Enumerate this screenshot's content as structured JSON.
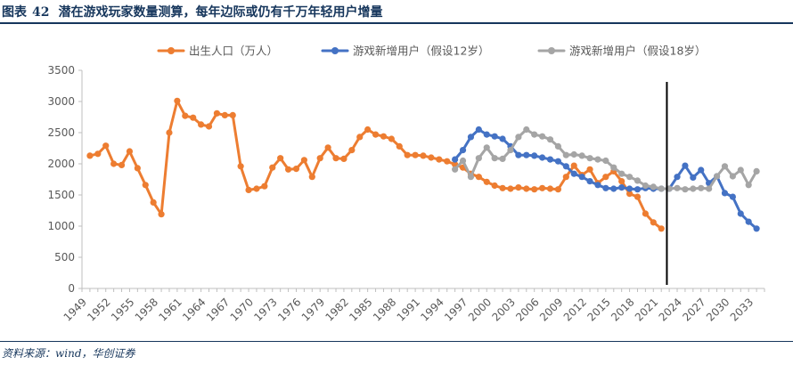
{
  "header": {
    "figure_label": "图表",
    "figure_number": "42",
    "title": "潜在游戏玩家数量测算，每年边际或仍有千万年轻用户增量"
  },
  "footer": {
    "source": "资料来源：wind，华创证券"
  },
  "chart_data": {
    "type": "line",
    "title": "潜在游戏玩家数量测算，每年边际或仍有千万年轻用户增量",
    "xlabel": "",
    "ylabel": "",
    "ylim": [
      0,
      3500
    ],
    "yticks": [
      0,
      500,
      1000,
      1500,
      2000,
      2500,
      3000,
      3500
    ],
    "xlim": [
      1949,
      2035
    ],
    "xticks": [
      1949,
      1952,
      1955,
      1958,
      1961,
      1964,
      1967,
      1970,
      1973,
      1976,
      1979,
      1982,
      1985,
      1988,
      1991,
      1994,
      1997,
      2000,
      2003,
      2006,
      2009,
      2012,
      2015,
      2018,
      2021,
      2024,
      2027,
      2030,
      2033
    ],
    "reference_line_x": 2022.7,
    "grid": false,
    "legend_position": "top",
    "series": [
      {
        "name": "出生人口（万人）",
        "color": "#ED7D31",
        "x": [
          1950,
          1951,
          1952,
          1953,
          1954,
          1955,
          1956,
          1957,
          1958,
          1959,
          1960,
          1961,
          1962,
          1963,
          1964,
          1965,
          1966,
          1967,
          1968,
          1969,
          1970,
          1971,
          1972,
          1973,
          1974,
          1975,
          1976,
          1977,
          1978,
          1979,
          1980,
          1981,
          1982,
          1983,
          1984,
          1985,
          1986,
          1987,
          1988,
          1989,
          1990,
          1991,
          1992,
          1993,
          1994,
          1995,
          1996,
          1997,
          1998,
          1999,
          2000,
          2001,
          2002,
          2003,
          2004,
          2005,
          2006,
          2007,
          2008,
          2009,
          2010,
          2011,
          2012,
          2013,
          2014,
          2015,
          2016,
          2017,
          2018,
          2019,
          2020,
          2021,
          2022
        ],
        "values": [
          2130,
          2160,
          2290,
          2000,
          1980,
          2200,
          1930,
          1660,
          1380,
          1190,
          2500,
          3010,
          2770,
          2740,
          2630,
          2600,
          2810,
          2780,
          2780,
          1960,
          1580,
          1600,
          1640,
          1940,
          2090,
          1910,
          1920,
          2060,
          1790,
          2090,
          2260,
          2090,
          2080,
          2220,
          2430,
          2550,
          2470,
          2440,
          2400,
          2280,
          2140,
          2140,
          2130,
          2100,
          2070,
          2040,
          1990,
          1940,
          1840,
          1790,
          1710,
          1650,
          1610,
          1600,
          1620,
          1600,
          1590,
          1610,
          1600,
          1590,
          1790,
          1970,
          1820,
          1910,
          1690,
          1790,
          1880,
          1720,
          1520,
          1470,
          1200,
          1060,
          960
        ]
      },
      {
        "name": "游戏新增用户（假设12岁）",
        "color": "#4472C4",
        "x": [
          1996,
          1997,
          1998,
          1999,
          2000,
          2001,
          2002,
          2003,
          2004,
          2005,
          2006,
          2007,
          2008,
          2009,
          2010,
          2011,
          2012,
          2013,
          2014,
          2015,
          2016,
          2017,
          2018,
          2019,
          2020,
          2021,
          2022,
          2023,
          2024,
          2025,
          2026,
          2027,
          2028,
          2029,
          2030,
          2031,
          2032,
          2033,
          2034
        ],
        "values": [
          2070,
          2220,
          2430,
          2550,
          2470,
          2440,
          2400,
          2280,
          2140,
          2140,
          2130,
          2100,
          2070,
          2040,
          1960,
          1840,
          1790,
          1720,
          1660,
          1610,
          1600,
          1620,
          1600,
          1590,
          1610,
          1600,
          1600,
          1600,
          1790,
          1970,
          1780,
          1900,
          1690,
          1800,
          1530,
          1470,
          1200,
          1070,
          960
        ]
      },
      {
        "name": "游戏新增用户（假设18岁）",
        "color": "#A5A5A5",
        "x": [
          1996,
          1997,
          1998,
          1999,
          2000,
          2001,
          2002,
          2003,
          2004,
          2005,
          2006,
          2007,
          2008,
          2009,
          2010,
          2011,
          2012,
          2013,
          2014,
          2015,
          2016,
          2017,
          2018,
          2019,
          2020,
          2021,
          2022,
          2023,
          2024,
          2025,
          2026,
          2027,
          2028,
          2029,
          2030,
          2031,
          2032,
          2033,
          2034
        ],
        "values": [
          1910,
          2050,
          1790,
          2090,
          2260,
          2090,
          2080,
          2220,
          2430,
          2550,
          2470,
          2440,
          2390,
          2280,
          2140,
          2150,
          2130,
          2090,
          2070,
          2050,
          1940,
          1840,
          1790,
          1730,
          1650,
          1630,
          1600,
          1600,
          1610,
          1590,
          1600,
          1610,
          1600,
          1800,
          1960,
          1800,
          1900,
          1660,
          1880
        ]
      }
    ]
  }
}
